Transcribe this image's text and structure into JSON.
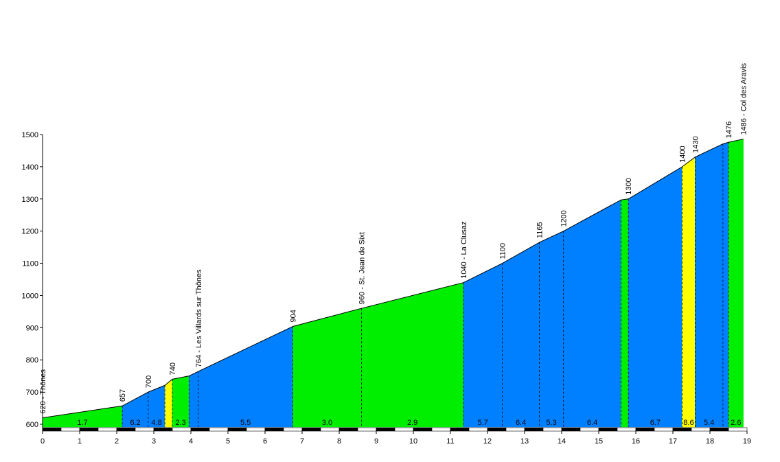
{
  "chart_data": {
    "type": "area",
    "title": "",
    "xlabel": "",
    "ylabel": "",
    "xlim": [
      0,
      19
    ],
    "ylim": [
      600,
      1500
    ],
    "x_ticks": [
      "0",
      "1",
      "2",
      "3",
      "4",
      "5",
      "6",
      "7",
      "8",
      "9",
      "10",
      "11",
      "12",
      "13",
      "14",
      "15",
      "16",
      "17",
      "18",
      "19"
    ],
    "y_ticks": [
      "600",
      "700",
      "800",
      "900",
      "1000",
      "1100",
      "1200",
      "1300",
      "1400",
      "1500"
    ],
    "profile": [
      {
        "km": 0.0,
        "alt": 620,
        "label": "620 - Thônes"
      },
      {
        "km": 2.15,
        "alt": 657,
        "label": "657"
      },
      {
        "km": 2.85,
        "alt": 700,
        "label": "700"
      },
      {
        "km": 3.3,
        "alt": 721,
        "label": ""
      },
      {
        "km": 3.5,
        "alt": 740,
        "label": "740"
      },
      {
        "km": 3.95,
        "alt": 750,
        "label": ""
      },
      {
        "km": 4.2,
        "alt": 764,
        "label": "764 - Les Villards sur Thônes"
      },
      {
        "km": 6.75,
        "alt": 904,
        "label": "904"
      },
      {
        "km": 8.6,
        "alt": 960,
        "label": "960 - St. Jean de Sixt"
      },
      {
        "km": 11.35,
        "alt": 1040,
        "label": "1040 - La Clusaz"
      },
      {
        "km": 12.4,
        "alt": 1100,
        "label": "1100"
      },
      {
        "km": 13.4,
        "alt": 1165,
        "label": "1165"
      },
      {
        "km": 14.05,
        "alt": 1200,
        "label": "1200"
      },
      {
        "km": 15.6,
        "alt": 1297,
        "label": ""
      },
      {
        "km": 15.8,
        "alt": 1300,
        "label": "1300"
      },
      {
        "km": 17.25,
        "alt": 1400,
        "label": "1400"
      },
      {
        "km": 17.6,
        "alt": 1430,
        "label": "1430"
      },
      {
        "km": 18.35,
        "alt": 1471,
        "label": ""
      },
      {
        "km": 18.5,
        "alt": 1476,
        "label": "1476"
      },
      {
        "km": 18.9,
        "alt": 1486,
        "label": "1486 - Col des Aravis"
      }
    ],
    "segments": [
      {
        "from": 0.0,
        "to": 2.15,
        "grade": "1.7",
        "color": "#00ee00"
      },
      {
        "from": 2.15,
        "to": 2.85,
        "grade": "6.2",
        "color": "#0080ff"
      },
      {
        "from": 2.85,
        "to": 3.3,
        "grade": "4.8",
        "color": "#0080ff"
      },
      {
        "from": 3.3,
        "to": 3.5,
        "grade": "",
        "color": "#ffff00"
      },
      {
        "from": 3.5,
        "to": 3.95,
        "grade": "2.3",
        "color": "#00ee00"
      },
      {
        "from": 3.95,
        "to": 4.2,
        "grade": "",
        "color": "#0080ff"
      },
      {
        "from": 4.2,
        "to": 6.75,
        "grade": "5.5",
        "color": "#0080ff"
      },
      {
        "from": 6.75,
        "to": 8.6,
        "grade": "3.0",
        "color": "#00ee00"
      },
      {
        "from": 8.6,
        "to": 11.35,
        "grade": "2.9",
        "color": "#00ee00"
      },
      {
        "from": 11.35,
        "to": 12.4,
        "grade": "5.7",
        "color": "#0080ff"
      },
      {
        "from": 12.4,
        "to": 13.4,
        "grade": "6.4",
        "color": "#0080ff"
      },
      {
        "from": 13.4,
        "to": 14.05,
        "grade": "5.3",
        "color": "#0080ff"
      },
      {
        "from": 14.05,
        "to": 15.6,
        "grade": "6.4",
        "color": "#0080ff"
      },
      {
        "from": 15.6,
        "to": 15.8,
        "grade": "",
        "color": "#00ee00"
      },
      {
        "from": 15.8,
        "to": 17.25,
        "grade": "6.7",
        "color": "#0080ff"
      },
      {
        "from": 17.25,
        "to": 17.6,
        "grade": "8.6",
        "color": "#ffff00"
      },
      {
        "from": 17.6,
        "to": 18.35,
        "grade": "5.4",
        "color": "#0080ff"
      },
      {
        "from": 18.35,
        "to": 18.5,
        "grade": "",
        "color": "#0080ff"
      },
      {
        "from": 18.5,
        "to": 18.9,
        "grade": "2.6",
        "color": "#00ee00"
      }
    ],
    "grid": false,
    "colors": {
      "easy": "#00ee00",
      "medium": "#0080ff",
      "steep": "#ffff00"
    }
  }
}
